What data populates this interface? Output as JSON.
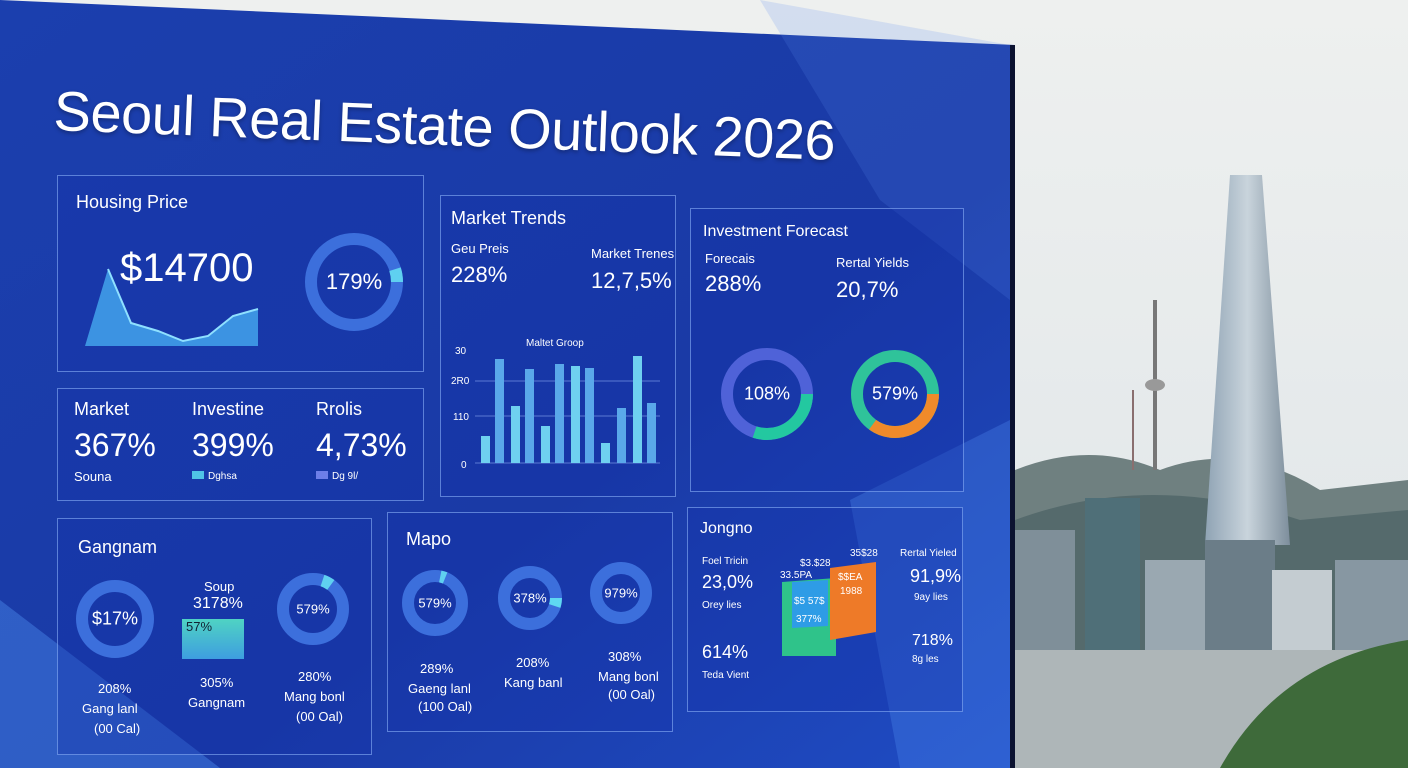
{
  "title": "Seoul Real Estate Outlook 2026",
  "housing_price": {
    "title": "Housing Price",
    "value": "$14700",
    "donut": "179%"
  },
  "metrics": [
    {
      "label": "Market",
      "value": "367%",
      "note": "Souna"
    },
    {
      "label": "Investine",
      "value": "399%",
      "note": "Dghsa"
    },
    {
      "label": "Rrolis",
      "value": "4,73%",
      "note": "Dg   9l/"
    }
  ],
  "market_trends": {
    "title": "Market Trends",
    "items": [
      {
        "label": "Geu Preis",
        "value": "228%"
      },
      {
        "label": "Market Trenes",
        "value": "12,7,5%"
      }
    ],
    "chart_title": "Maltet Groop",
    "yticks": [
      "30",
      "2R0",
      "110",
      "0"
    ]
  },
  "investment_forecast": {
    "title": "Investment Forecast",
    "items": [
      {
        "label": "Forecais",
        "value": "288%"
      },
      {
        "label": "Rertal Yields",
        "value": "20,7%"
      }
    ],
    "donuts": [
      "108%",
      "579%"
    ]
  },
  "gangnam": {
    "title": "Gangnam",
    "donuts": [
      "$17%",
      "579%"
    ],
    "middle": {
      "label": "Soup",
      "value": "3178%",
      "bar_label": "57%"
    },
    "footers": [
      {
        "value": "208%",
        "label": "Gang lanl",
        "note": "(00 Cal)"
      },
      {
        "value": "305%",
        "label": "Gangnam"
      },
      {
        "value": "280%",
        "label": "Mang bonl",
        "note": "(00 Oal)"
      }
    ]
  },
  "mapo": {
    "title": "Mapo",
    "donuts": [
      "579%",
      "378%",
      "979%"
    ],
    "footers": [
      {
        "value": "289%",
        "label": "Gaeng lanl",
        "note": "(100 Oal)"
      },
      {
        "value": "208%",
        "label": "Kang banl"
      },
      {
        "value": "308%",
        "label": "Mang bonl",
        "note": "(00 Oal)"
      }
    ]
  },
  "jongno": {
    "title": "Jongno",
    "left": {
      "label": "Foel Tricin",
      "value": "23,0%",
      "note": "Orey lies"
    },
    "right": {
      "label": "Rertal Yieled",
      "value": "91,9%",
      "note": "9ay lies"
    },
    "chart_labels": [
      "$3.$28",
      "33.5PA",
      "35$28",
      "$$EA",
      "1988",
      "$5 57$",
      "377%"
    ],
    "bottom_left": {
      "value": "614%",
      "label": "Teda Vient"
    },
    "bottom_right": {
      "value": "718%",
      "label": "8g les"
    }
  }
}
